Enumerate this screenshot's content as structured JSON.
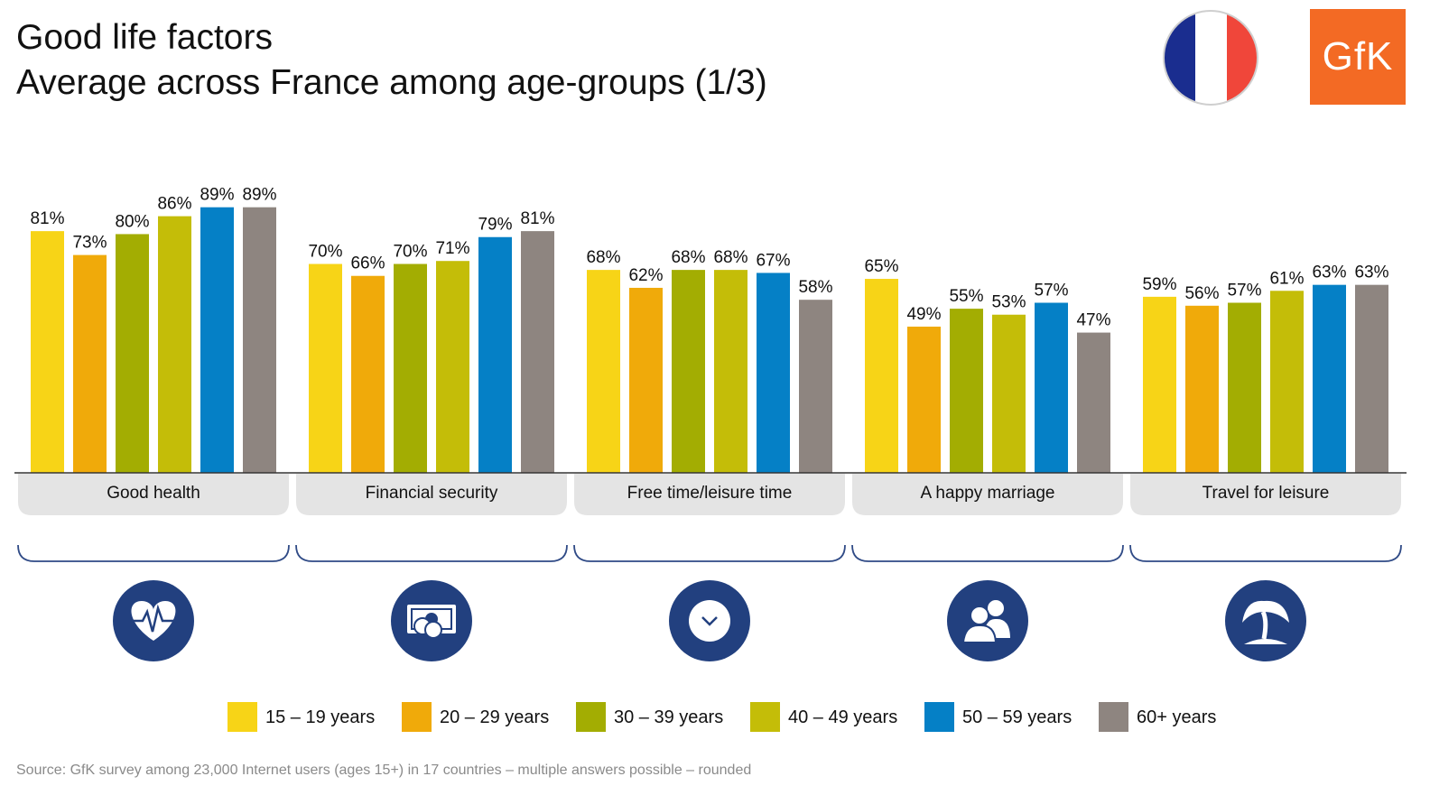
{
  "header": {
    "title_line1": "Good life factors",
    "title_line2": "Average across France among age-groups (1/3)",
    "logo_text": "GfK",
    "flag_icon": "france-flag-icon",
    "logo_icon": "gfk-logo-icon",
    "logo_color": "#f36a24"
  },
  "chart_data": {
    "type": "bar",
    "title": "Good life factors",
    "subtitle": "Average across France among age-groups (1/3)",
    "categories": [
      "Good health",
      "Financial security",
      "Free time/leisure time",
      "A happy marriage",
      "Travel for leisure"
    ],
    "category_icons": [
      "heartbeat-icon",
      "money-icon",
      "clock-icon",
      "couple-icon",
      "palm-tree-icon"
    ],
    "series": [
      {
        "name": "15 – 19 years",
        "color": "#f7d417",
        "values": [
          81,
          70,
          68,
          65,
          59
        ]
      },
      {
        "name": "20 – 29 years",
        "color": "#f0aa0a",
        "values": [
          73,
          66,
          62,
          49,
          56
        ]
      },
      {
        "name": "30 – 39 years",
        "color": "#a3ad02",
        "values": [
          80,
          70,
          68,
          55,
          57
        ]
      },
      {
        "name": "40 – 49 years",
        "color": "#c4bd08",
        "values": [
          86,
          71,
          68,
          53,
          61
        ]
      },
      {
        "name": "50 – 59 years",
        "color": "#0580c6",
        "values": [
          89,
          79,
          67,
          57,
          63
        ]
      },
      {
        "name": "60+ years",
        "color": "#8e8580",
        "values": [
          89,
          81,
          58,
          47,
          63
        ]
      }
    ],
    "value_suffix": "%",
    "ylim": [
      0,
      100
    ],
    "grid": false,
    "legend_position": "bottom",
    "xlabel": "",
    "ylabel": ""
  },
  "footer": {
    "source": "Source: GfK survey among 23,000 Internet users (ages 15+) in 17 countries – multiple answers possible – rounded"
  },
  "colors": {
    "icon_circle": "#22407f",
    "category_box": "#e4e4e4",
    "bracket": "#2f4a86"
  }
}
